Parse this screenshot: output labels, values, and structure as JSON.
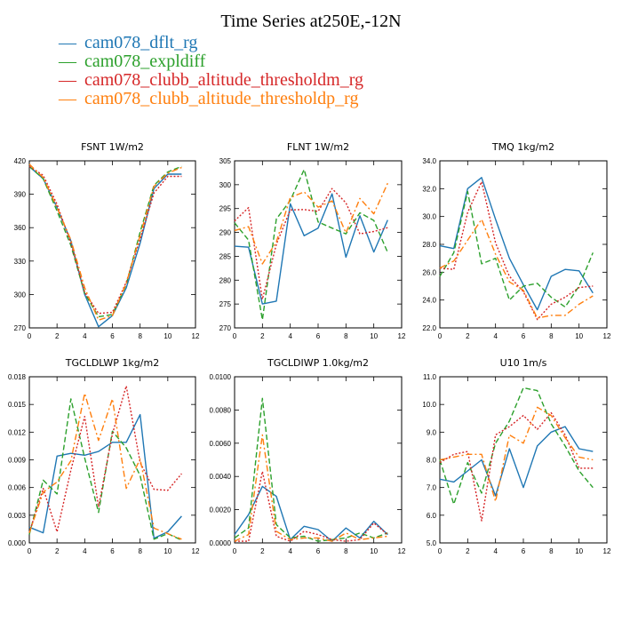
{
  "figure": {
    "title": "Time Series at250E,-12N"
  },
  "legend": [
    {
      "symbol": "—",
      "label": "cam078_dflt_rg",
      "color": "#1f77b4"
    },
    {
      "symbol": "—",
      "label": "cam078_expldiff",
      "color": "#2ca02c"
    },
    {
      "symbol": "—",
      "label": "cam078_clubb_altitude_thresholdm_rg",
      "color": "#d62728"
    },
    {
      "symbol": "—",
      "label": "cam078_clubb_altitude_thresholdp_rg",
      "color": "#ff7f0e"
    }
  ],
  "chart_data": [
    {
      "type": "line",
      "title": "FSNT   1W/m2",
      "x": [
        0,
        1,
        2,
        3,
        4,
        5,
        6,
        7,
        8,
        9,
        10,
        11
      ],
      "xlim": [
        0,
        12
      ],
      "xticks": [
        0,
        2,
        4,
        6,
        8,
        10,
        12
      ],
      "xtick_labels": [
        "0",
        "2",
        "4",
        "6",
        "8",
        "10",
        "12"
      ],
      "ylim": [
        270,
        420
      ],
      "yticks": [
        270,
        300,
        330,
        360,
        390,
        420
      ],
      "ytick_labels": [
        "270",
        "300",
        "330",
        "360",
        "390",
        "420"
      ],
      "series": [
        {
          "name": "cam078_dflt_rg",
          "color": "#1f77b4",
          "dash": "solid",
          "values": [
            415,
            404,
            378,
            348,
            300,
            271,
            281,
            306,
            346,
            395,
            408,
            408
          ]
        },
        {
          "name": "cam078_expldiff",
          "color": "#2ca02c",
          "dash": "dashed",
          "values": [
            415,
            404,
            375,
            344,
            301,
            280,
            282,
            309,
            356,
            398,
            410,
            415
          ]
        },
        {
          "name": "cam078_clubb_altitude_thresholdm_rg",
          "color": "#d62728",
          "dash": "dotted",
          "values": [
            415,
            407,
            381,
            346,
            302,
            283,
            284,
            311,
            350,
            391,
            406,
            406
          ]
        },
        {
          "name": "cam078_clubb_altitude_thresholdp_rg",
          "color": "#ff7f0e",
          "dash": "dashdot",
          "values": [
            417,
            405,
            378,
            349,
            306,
            277,
            281,
            310,
            353,
            397,
            409,
            414
          ]
        }
      ]
    },
    {
      "type": "line",
      "title": "FLNT   1W/m2",
      "x": [
        0,
        1,
        2,
        3,
        4,
        5,
        6,
        7,
        8,
        9,
        10,
        11
      ],
      "xlim": [
        0,
        12
      ],
      "xticks": [
        0,
        2,
        4,
        6,
        8,
        10,
        12
      ],
      "xtick_labels": [
        "0",
        "2",
        "4",
        "6",
        "8",
        "10",
        "12"
      ],
      "ylim": [
        270,
        305
      ],
      "yticks": [
        270,
        275,
        280,
        285,
        290,
        295,
        300,
        305
      ],
      "ytick_labels": [
        "270",
        "275",
        "280",
        "285",
        "290",
        "295",
        "300",
        "305"
      ],
      "series": [
        {
          "name": "cam078_dflt_rg",
          "color": "#1f77b4",
          "dash": "solid",
          "values": [
            287.1,
            286.9,
            275.0,
            275.6,
            296.0,
            289.3,
            290.9,
            298.1,
            284.8,
            293.5,
            285.9,
            292.6
          ]
        },
        {
          "name": "cam078_expldiff",
          "color": "#2ca02c",
          "dash": "dashed",
          "values": [
            292.0,
            288.4,
            271.7,
            292.8,
            296.7,
            303.2,
            292.2,
            290.9,
            289.7,
            294.1,
            292.5,
            285.8
          ]
        },
        {
          "name": "cam078_clubb_altitude_thresholdm_rg",
          "color": "#d62728",
          "dash": "dotted",
          "values": [
            292.4,
            295.2,
            276.0,
            287.5,
            294.7,
            294.8,
            294.4,
            299.2,
            296.2,
            289.7,
            290.2,
            291.0
          ]
        },
        {
          "name": "cam078_clubb_altitude_thresholdp_rg",
          "color": "#ff7f0e",
          "dash": "dashdot",
          "values": [
            290.4,
            291.2,
            283.4,
            288.0,
            297.3,
            298.5,
            295.3,
            296.6,
            289.9,
            297.1,
            293.9,
            300.3
          ]
        }
      ]
    },
    {
      "type": "line",
      "title": "TMQ   1kg/m2",
      "x": [
        0,
        1,
        2,
        3,
        4,
        5,
        6,
        7,
        8,
        9,
        10,
        11
      ],
      "xlim": [
        0,
        12
      ],
      "xticks": [
        0,
        2,
        4,
        6,
        8,
        10,
        12
      ],
      "xtick_labels": [
        "0",
        "2",
        "4",
        "6",
        "8",
        "10",
        "12"
      ],
      "ylim": [
        22,
        34
      ],
      "yticks": [
        22,
        24,
        26,
        28,
        30,
        32,
        34
      ],
      "ytick_labels": [
        "22.0",
        "24.0",
        "26.0",
        "28.0",
        "30.0",
        "32.0",
        "34.0"
      ],
      "series": [
        {
          "name": "cam078_dflt_rg",
          "color": "#1f77b4",
          "dash": "solid",
          "values": [
            27.9,
            27.7,
            32.0,
            32.8,
            29.8,
            27.0,
            25.1,
            23.3,
            25.7,
            26.2,
            26.1,
            24.5
          ]
        },
        {
          "name": "cam078_expldiff",
          "color": "#2ca02c",
          "dash": "dashed",
          "values": [
            25.7,
            27.4,
            31.8,
            26.6,
            27.0,
            24.0,
            25.0,
            25.2,
            24.2,
            23.5,
            25.0,
            27.4
          ]
        },
        {
          "name": "cam078_clubb_altitude_thresholdm_rg",
          "color": "#d62728",
          "dash": "dotted",
          "values": [
            26.3,
            26.2,
            30.3,
            32.5,
            28.1,
            25.7,
            24.6,
            22.6,
            23.7,
            24.2,
            24.9,
            25.0
          ]
        },
        {
          "name": "cam078_clubb_altitude_thresholdp_rg",
          "color": "#ff7f0e",
          "dash": "dashdot",
          "values": [
            26.3,
            26.8,
            28.3,
            29.8,
            27.3,
            25.3,
            24.7,
            22.7,
            22.9,
            22.9,
            23.7,
            24.3
          ]
        }
      ]
    },
    {
      "type": "line",
      "title": "TGCLDLWP   1kg/m2",
      "x": [
        0,
        1,
        2,
        3,
        4,
        5,
        6,
        7,
        8,
        9,
        10,
        11
      ],
      "xlim": [
        0,
        12
      ],
      "xticks": [
        0,
        2,
        4,
        6,
        8,
        10,
        12
      ],
      "xtick_labels": [
        "0",
        "2",
        "4",
        "6",
        "8",
        "10",
        "12"
      ],
      "ylim": [
        0,
        0.018
      ],
      "yticks": [
        0,
        0.003,
        0.006,
        0.009,
        0.012,
        0.015,
        0.018
      ],
      "ytick_labels": [
        "0.000",
        "0.003",
        "0.006",
        "0.009",
        "0.012",
        "0.015",
        "0.018"
      ],
      "series": [
        {
          "name": "cam078_dflt_rg",
          "color": "#1f77b4",
          "dash": "solid",
          "values": [
            0.0017,
            0.0011,
            0.0094,
            0.0097,
            0.0095,
            0.0099,
            0.0109,
            0.0109,
            0.0139,
            0.0005,
            0.0012,
            0.0029
          ]
        },
        {
          "name": "cam078_expldiff",
          "color": "#2ca02c",
          "dash": "dashed",
          "values": [
            0.0009,
            0.0068,
            0.0053,
            0.0156,
            0.0092,
            0.0033,
            0.0121,
            0.0103,
            0.0073,
            0.0004,
            0.001,
            0.0003
          ]
        },
        {
          "name": "cam078_clubb_altitude_thresholdm_rg",
          "color": "#d62728",
          "dash": "dotted",
          "values": [
            0.0011,
            0.0059,
            0.0012,
            0.0079,
            0.0137,
            0.0039,
            0.0118,
            0.017,
            0.0087,
            0.0058,
            0.0057,
            0.0075
          ]
        },
        {
          "name": "cam078_clubb_altitude_thresholdp_rg",
          "color": "#ff7f0e",
          "dash": "dashdot",
          "values": [
            0.0011,
            0.0055,
            0.0066,
            0.0089,
            0.0162,
            0.0111,
            0.0156,
            0.0059,
            0.0091,
            0.0016,
            0.001,
            0.0004
          ]
        }
      ]
    },
    {
      "type": "line",
      "title": "TGCLDIWP   1.0kg/m2",
      "x": [
        0,
        1,
        2,
        3,
        4,
        5,
        6,
        7,
        8,
        9,
        10,
        11
      ],
      "xlim": [
        0,
        12
      ],
      "xticks": [
        0,
        2,
        4,
        6,
        8,
        10,
        12
      ],
      "xtick_labels": [
        "0",
        "2",
        "4",
        "6",
        "8",
        "10",
        "12"
      ],
      "ylim": [
        0,
        0.01
      ],
      "yticks": [
        0,
        0.002,
        0.004,
        0.006,
        0.008,
        0.01
      ],
      "ytick_labels": [
        "0.0000",
        "0.0020",
        "0.0040",
        "0.0060",
        "0.0080",
        "0.0100"
      ],
      "series": [
        {
          "name": "cam078_dflt_rg",
          "color": "#1f77b4",
          "dash": "solid",
          "values": [
            0.0005,
            0.0017,
            0.0034,
            0.0028,
            0.0002,
            0.001,
            0.0008,
            0.0001,
            0.0009,
            0.0003,
            0.0013,
            0.0005
          ]
        },
        {
          "name": "cam078_expldiff",
          "color": "#2ca02c",
          "dash": "dashed",
          "values": [
            0.0003,
            0.0009,
            0.0087,
            0.0011,
            0.0003,
            0.0004,
            0.0001,
            0.0002,
            0.0003,
            0.0006,
            0.0003,
            0.0006
          ]
        },
        {
          "name": "cam078_clubb_altitude_thresholdm_rg",
          "color": "#d62728",
          "dash": "dotted",
          "values": [
            0.0001,
            0.0001,
            0.0043,
            0.0004,
            0.0001,
            0.0007,
            0.0005,
            0.0002,
            0.0001,
            0.0002,
            0.0012,
            0.0005
          ]
        },
        {
          "name": "cam078_clubb_altitude_thresholdp_rg",
          "color": "#ff7f0e",
          "dash": "dashdot",
          "values": [
            0.0001,
            0.0005,
            0.0065,
            0.0007,
            0.0002,
            0.0003,
            0.0003,
            0.0001,
            0.0006,
            0.0002,
            0.0003,
            0.0004
          ]
        }
      ]
    },
    {
      "type": "line",
      "title": "U10   1m/s",
      "x": [
        0,
        1,
        2,
        3,
        4,
        5,
        6,
        7,
        8,
        9,
        10,
        11
      ],
      "xlim": [
        0,
        12
      ],
      "xticks": [
        0,
        2,
        4,
        6,
        8,
        10,
        12
      ],
      "xtick_labels": [
        "0",
        "2",
        "4",
        "6",
        "8",
        "10",
        "12"
      ],
      "ylim": [
        5,
        11
      ],
      "yticks": [
        5,
        6,
        7,
        8,
        9,
        10,
        11
      ],
      "ytick_labels": [
        "5.0",
        "6.0",
        "7.0",
        "8.0",
        "9.0",
        "10.0",
        "11.0"
      ],
      "series": [
        {
          "name": "cam078_dflt_rg",
          "color": "#1f77b4",
          "dash": "solid",
          "values": [
            7.3,
            7.2,
            7.6,
            8.0,
            6.7,
            8.4,
            7.0,
            8.5,
            9.0,
            9.2,
            8.4,
            8.3
          ]
        },
        {
          "name": "cam078_expldiff",
          "color": "#2ca02c",
          "dash": "dashed",
          "values": [
            8.0,
            6.4,
            7.9,
            6.8,
            8.6,
            9.4,
            10.6,
            10.5,
            9.3,
            8.5,
            7.6,
            7.0
          ]
        },
        {
          "name": "cam078_clubb_altitude_thresholdm_rg",
          "color": "#d62728",
          "dash": "dotted",
          "values": [
            7.9,
            8.2,
            8.3,
            5.8,
            8.9,
            9.2,
            9.6,
            9.1,
            9.7,
            8.9,
            7.7,
            7.7
          ]
        },
        {
          "name": "cam078_clubb_altitude_thresholdp_rg",
          "color": "#ff7f0e",
          "dash": "dashdot",
          "values": [
            8.0,
            8.1,
            8.2,
            8.2,
            6.5,
            8.9,
            8.6,
            9.9,
            9.6,
            8.8,
            8.1,
            8.0
          ]
        }
      ]
    }
  ]
}
